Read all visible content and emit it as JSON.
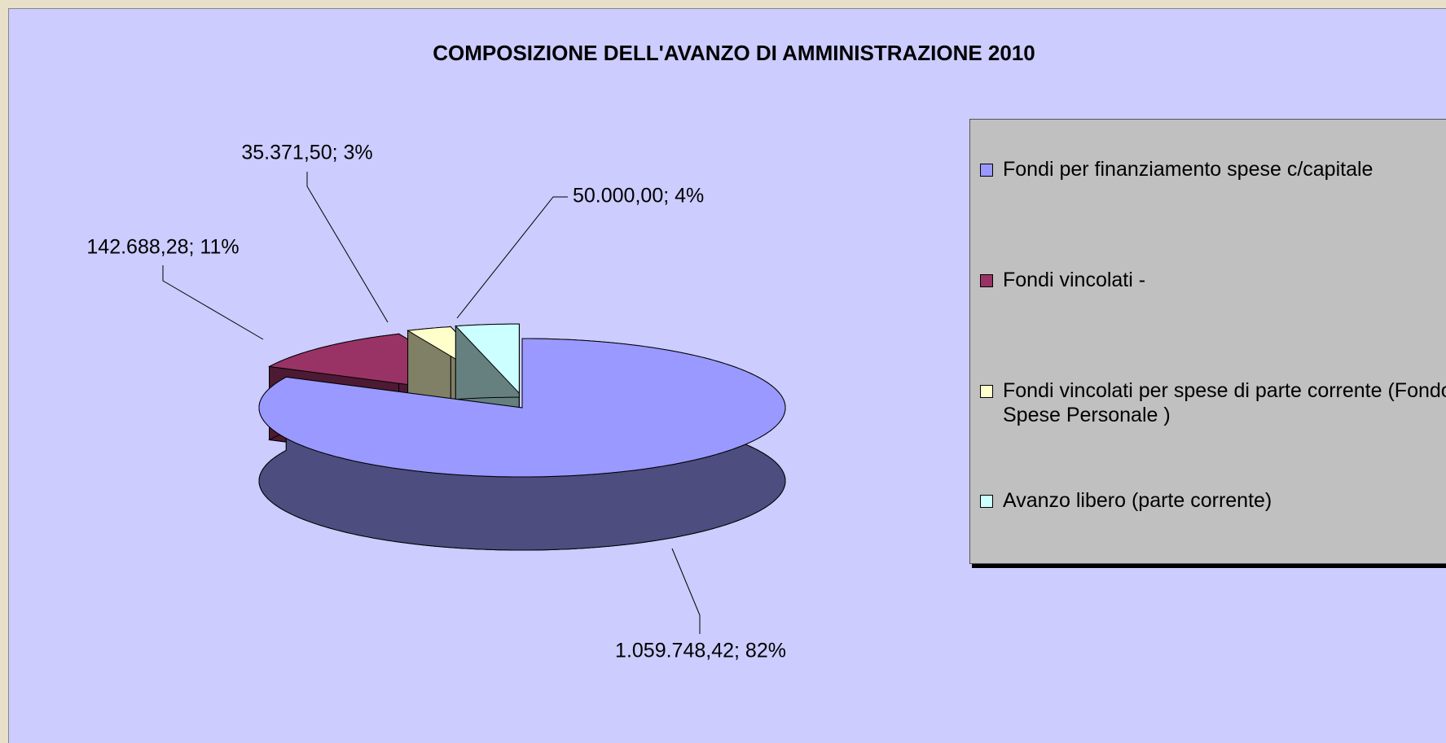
{
  "chart_data": {
    "type": "pie3d",
    "title": "COMPOSIZIONE DELL'AVANZO DI AMMINISTRAZIONE 2010",
    "categories": [
      "Fondi per finanziamento spese c/capitale",
      "Fondi vincolati -",
      "Fondi vincolati per spese di parte corrente (Fondo Spese Personale )",
      "Avanzo libero (parte corrente)"
    ],
    "values": [
      1059748.42,
      142688.28,
      35371.5,
      50000.0
    ],
    "value_labels": [
      "1.059.748,42; 82%",
      "142.688,28; 11%",
      "35.371,50; 3%",
      "50.000,00; 4%"
    ],
    "colors": [
      "#9999ff",
      "#993366",
      "#ffffcc",
      "#ccffff"
    ],
    "side_colors": [
      "#4d4d80",
      "#4d1a33",
      "#808066",
      "#668080"
    ],
    "legend": "right"
  }
}
